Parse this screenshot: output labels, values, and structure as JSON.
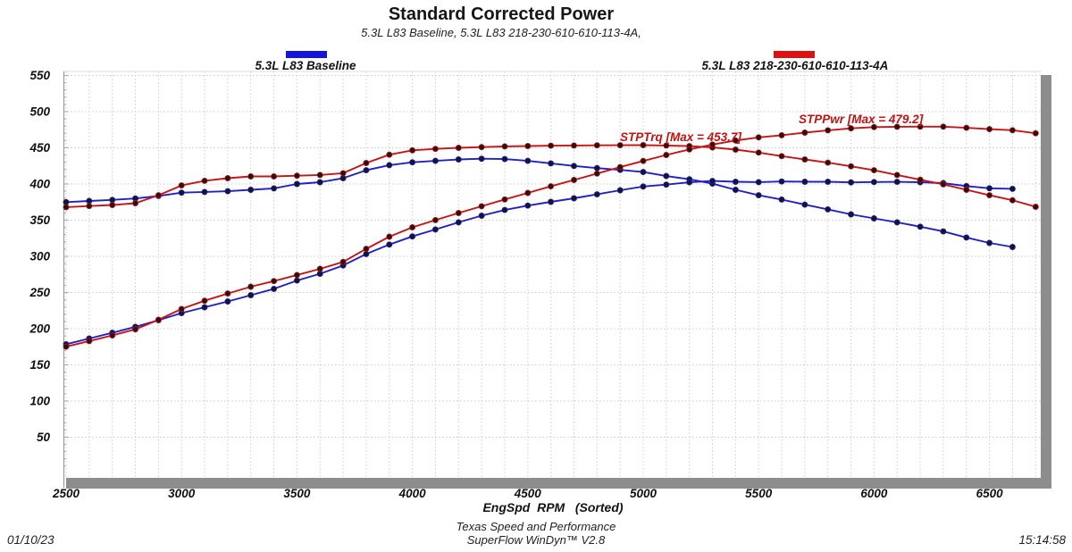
{
  "header": {
    "title": "Standard Corrected Power",
    "subtitle": "5.3L L83 Baseline, 5.3L L83 218-230-610-610-113-4A,"
  },
  "legend": [
    {
      "label": "5.3L L83 Baseline",
      "color": "#1414dd"
    },
    {
      "label": "5.3L L83 218-230-610-610-113-4A",
      "color": "#dd1111"
    }
  ],
  "annotations": [
    {
      "text": "STPTrq [Max = 453.7]"
    },
    {
      "text": "STPPwr [Max = 479.2]"
    }
  ],
  "footer": {
    "company": "Texas Speed and Performance",
    "software": "SuperFlow WinDyn™ V2.8",
    "date": "01/10/23",
    "time": "15:14:58"
  },
  "chart_data": {
    "type": "line",
    "title": "Standard Corrected Power",
    "xlabel": "EngSpd  RPM   (Sorted)",
    "ylabel": "",
    "xlim": [
      2500,
      6700
    ],
    "ylim": [
      0,
      560
    ],
    "x_ticks": [
      2500,
      3000,
      3500,
      4000,
      4500,
      5000,
      5500,
      6000,
      6500
    ],
    "x_minor_step": 100,
    "y_ticks": [
      50,
      100,
      150,
      200,
      250,
      300,
      350,
      400,
      450,
      500,
      550
    ],
    "grid": "dotted",
    "legend_position": "top",
    "series": [
      {
        "name": "STPTrq - 5.3L L83 Baseline",
        "color": "#2020c8",
        "marker_color": "#15152d",
        "x": [
          2500,
          2600,
          2700,
          2800,
          2900,
          3000,
          3100,
          3200,
          3300,
          3400,
          3500,
          3600,
          3700,
          3800,
          3900,
          4000,
          4100,
          4200,
          4300,
          4400,
          4500,
          4600,
          4700,
          4800,
          4900,
          5000,
          5100,
          5200,
          5300,
          5400,
          5500,
          5600,
          5700,
          5800,
          5900,
          6000,
          6100,
          6200,
          6300,
          6400,
          6500,
          6600
        ],
        "values": [
          375,
          376.5,
          378,
          380,
          383.5,
          388,
          389,
          390,
          392,
          394,
          400,
          402.5,
          408,
          419,
          426,
          430,
          432,
          434,
          435,
          434.5,
          432,
          428.5,
          425,
          422,
          419.5,
          416.5,
          411,
          406.5,
          400.5,
          392,
          384.5,
          378.5,
          371.5,
          365,
          358,
          352.5,
          347,
          341,
          334.5,
          326,
          318.5,
          313
        ]
      },
      {
        "name": "STPPwr - 5.3L L83 Baseline",
        "color": "#2020c8",
        "marker_color": "#15152d",
        "x": [
          2500,
          2600,
          2700,
          2800,
          2900,
          3000,
          3100,
          3200,
          3300,
          3400,
          3500,
          3600,
          3700,
          3800,
          3900,
          4000,
          4100,
          4200,
          4300,
          4400,
          4500,
          4600,
          4700,
          4800,
          4900,
          5000,
          5100,
          5200,
          5300,
          5400,
          5500,
          5600,
          5700,
          5800,
          5900,
          6000,
          6100,
          6200,
          6300,
          6400,
          6500,
          6600
        ],
        "values": [
          178.5,
          186.4,
          194.3,
          202.6,
          211.7,
          221.6,
          229.6,
          237.6,
          246.3,
          255.1,
          266.5,
          275.9,
          287.4,
          303.2,
          316.3,
          327.5,
          337.2,
          347.0,
          356.2,
          364.1,
          370.1,
          375.3,
          380.3,
          385.7,
          391.4,
          396.5,
          399.1,
          402.4,
          404.2,
          403.1,
          402.6,
          403.5,
          403.1,
          403.1,
          402.2,
          402.7,
          403.0,
          402.5,
          401.2,
          397.2,
          394.1,
          393.3
        ]
      },
      {
        "name": "STPTrq - 5.3L L83 218-230-610-610-113-4A",
        "color": "#c81414",
        "marker_color": "#2d1111",
        "max": 453.7,
        "x": [
          2500,
          2600,
          2700,
          2800,
          2900,
          3000,
          3100,
          3200,
          3300,
          3400,
          3500,
          3600,
          3700,
          3800,
          3900,
          4000,
          4100,
          4200,
          4300,
          4400,
          4500,
          4600,
          4700,
          4800,
          4900,
          5000,
          5100,
          5200,
          5300,
          5400,
          5500,
          5600,
          5700,
          5800,
          5900,
          6000,
          6100,
          6200,
          6300,
          6400,
          6500,
          6600,
          6700
        ],
        "values": [
          368,
          369.5,
          371,
          373.5,
          384.5,
          398,
          404.5,
          408,
          410.5,
          410.5,
          411.5,
          412.5,
          415,
          429,
          440.5,
          446.5,
          448.5,
          450,
          451,
          452,
          452.5,
          453,
          453.2,
          453.4,
          453.6,
          453.7,
          453.2,
          452.3,
          450.5,
          447.5,
          443.5,
          438.5,
          434,
          429.5,
          424.5,
          419,
          412.5,
          405.9,
          399.5,
          392,
          384.5,
          377.5,
          368.5
        ]
      },
      {
        "name": "STPPwr - 5.3L L83 218-230-610-610-113-4A",
        "color": "#c81414",
        "marker_color": "#2d1111",
        "max": 479.2,
        "x": [
          2500,
          2600,
          2700,
          2800,
          2900,
          3000,
          3100,
          3200,
          3300,
          3400,
          3500,
          3600,
          3700,
          3800,
          3900,
          4000,
          4100,
          4200,
          4300,
          4400,
          4500,
          4600,
          4700,
          4800,
          4900,
          5000,
          5100,
          5200,
          5300,
          5400,
          5500,
          5600,
          5700,
          5800,
          5900,
          6000,
          6100,
          6200,
          6300,
          6400,
          6500,
          6600,
          6700
        ],
        "values": [
          175.2,
          182.9,
          190.7,
          199.1,
          212.3,
          227.3,
          238.7,
          248.6,
          258.0,
          265.8,
          274.2,
          282.7,
          292.4,
          310.4,
          327.1,
          340.1,
          350.1,
          359.9,
          369.2,
          378.6,
          387.7,
          396.8,
          405.5,
          414.4,
          423.3,
          431.9,
          440.1,
          447.8,
          454.6,
          460.1,
          464.4,
          467.4,
          471.0,
          474.2,
          476.9,
          478.7,
          479.1,
          479.2,
          479.2,
          477.6,
          475.8,
          474.3,
          470.1
        ]
      }
    ]
  }
}
